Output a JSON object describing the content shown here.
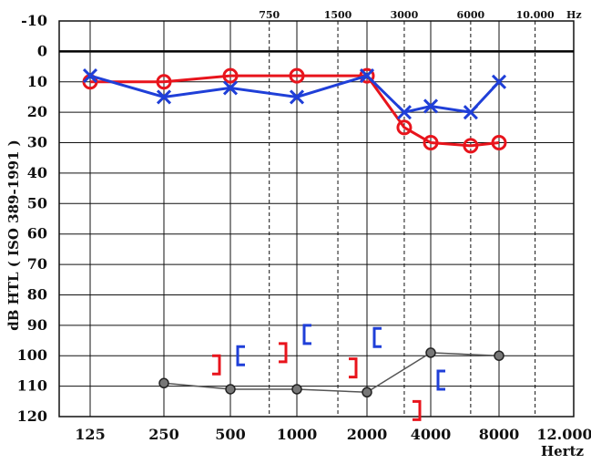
{
  "chart_data": {
    "type": "line",
    "ylabel": "dB HTL   ( ISO 389-1991 )",
    "xlabel": "Hertz",
    "x_unit_top": "Hz",
    "y_ticks": [
      "-10",
      "0",
      "10",
      "20",
      "30",
      "40",
      "50",
      "60",
      "70",
      "80",
      "90",
      "100",
      "110",
      "120"
    ],
    "y_values": [
      -10,
      0,
      10,
      20,
      30,
      40,
      50,
      60,
      70,
      80,
      90,
      100,
      110,
      120
    ],
    "ylim": [
      -10,
      120
    ],
    "x_ticks_bottom": [
      {
        "label": "125",
        "freq": 125
      },
      {
        "label": "250",
        "freq": 250
      },
      {
        "label": "500",
        "freq": 500
      },
      {
        "label": "1000",
        "freq": 1000
      },
      {
        "label": "2000",
        "freq": 2000
      },
      {
        "label": "4000",
        "freq": 4000
      },
      {
        "label": "8000",
        "freq": 8000
      },
      {
        "label": "12.000",
        "freq": 12000
      }
    ],
    "x_ticks_top": [
      {
        "label": "750",
        "freq": 750
      },
      {
        "label": "1500",
        "freq": 1500
      },
      {
        "label": "3000",
        "freq": 3000
      },
      {
        "label": "6000",
        "freq": 6000
      },
      {
        "label": "10.000",
        "freq": 10000
      }
    ],
    "x_scale": "log",
    "series": [
      {
        "color": "#e8141c",
        "marker": "circle",
        "points": [
          [
            125,
            10
          ],
          [
            250,
            10
          ],
          [
            500,
            8
          ],
          [
            1000,
            8
          ],
          [
            2000,
            8
          ],
          [
            3000,
            25
          ],
          [
            4000,
            30
          ],
          [
            6000,
            31
          ],
          [
            8000,
            30
          ]
        ]
      },
      {
        "color": "#1f3fd8",
        "marker": "cross",
        "points": [
          [
            125,
            8
          ],
          [
            250,
            15
          ],
          [
            500,
            12
          ],
          [
            1000,
            15
          ],
          [
            2000,
            8
          ],
          [
            3000,
            20
          ],
          [
            4000,
            18
          ],
          [
            6000,
            20
          ],
          [
            8000,
            10
          ]
        ]
      },
      {
        "color": "#555555",
        "marker": "dot",
        "points": [
          [
            250,
            109
          ],
          [
            500,
            111
          ],
          [
            1000,
            111
          ],
          [
            2000,
            112
          ],
          [
            4000,
            99
          ],
          [
            8000,
            100
          ]
        ]
      }
    ],
    "bone_right": [
      {
        "freq": 500,
        "y": 103
      },
      {
        "freq": 1000,
        "y": 99
      },
      {
        "freq": 2000,
        "y": 104
      },
      {
        "freq": 4000,
        "y": 118
      }
    ],
    "bone_left": [
      {
        "freq": 500,
        "y": 100
      },
      {
        "freq": 1000,
        "y": 93
      },
      {
        "freq": 2000,
        "y": 94
      },
      {
        "freq": 4000,
        "y": 108
      }
    ],
    "colors": {
      "grid": "#111111",
      "axis_zero": "#000000",
      "red": "#e8141c",
      "blue": "#1f3fd8"
    }
  }
}
